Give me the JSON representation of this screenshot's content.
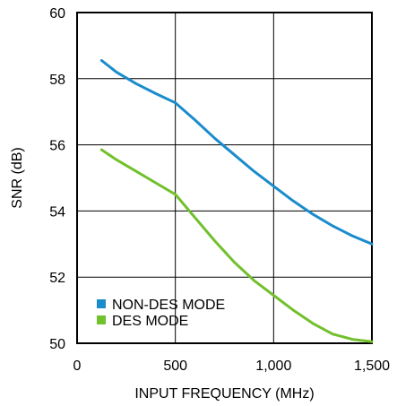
{
  "chart_data": {
    "type": "line",
    "xlabel": "INPUT FREQUENCY (MHz)",
    "ylabel": "SNR (dB)",
    "xlim": [
      0,
      1500
    ],
    "ylim": [
      50,
      60
    ],
    "x_ticks": [
      0,
      500,
      1000,
      1500
    ],
    "x_tick_labels": [
      "0",
      "500",
      "1,000",
      "1,500"
    ],
    "y_ticks": [
      50,
      52,
      54,
      56,
      58,
      60
    ],
    "y_tick_labels": [
      "50",
      "52",
      "54",
      "56",
      "58",
      "60"
    ],
    "grid": true,
    "legend": "bottom-left",
    "series": [
      {
        "name": "NON-DES MODE",
        "color": "#1a8ccc",
        "x": [
          125,
          200,
          300,
          400,
          500,
          600,
          700,
          800,
          900,
          1000,
          1100,
          1200,
          1300,
          1400,
          1500
        ],
        "y": [
          58.55,
          58.2,
          57.85,
          57.55,
          57.27,
          56.75,
          56.2,
          55.7,
          55.2,
          54.75,
          54.3,
          53.9,
          53.55,
          53.25,
          53.0
        ]
      },
      {
        "name": "DES MODE",
        "color": "#72c02c",
        "x": [
          125,
          200,
          300,
          400,
          500,
          600,
          700,
          800,
          900,
          1000,
          1100,
          1200,
          1300,
          1400,
          1500
        ],
        "y": [
          55.85,
          55.55,
          55.2,
          54.85,
          54.5,
          53.8,
          53.1,
          52.45,
          51.9,
          51.45,
          51.0,
          50.6,
          50.28,
          50.12,
          50.05
        ]
      }
    ]
  }
}
